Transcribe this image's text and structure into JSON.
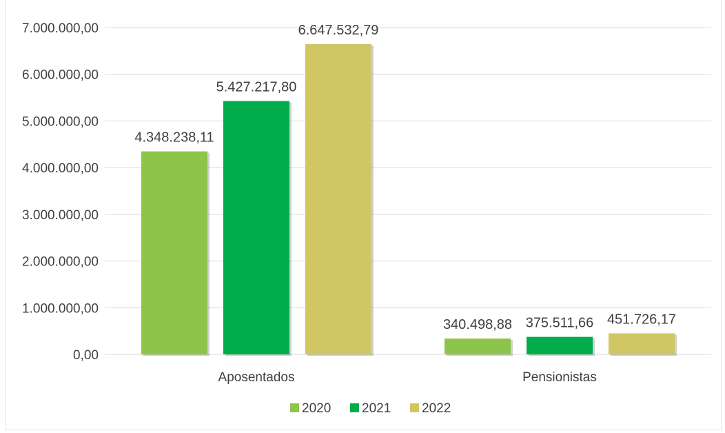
{
  "chart_data": {
    "type": "bar",
    "categories": [
      "Aposentados",
      "Pensionistas"
    ],
    "series": [
      {
        "name": "2020",
        "values": [
          4348238.11,
          340498.88
        ],
        "labels": [
          "4.348.238,11",
          "340.498,88"
        ],
        "color": "#8dc54a"
      },
      {
        "name": "2021",
        "values": [
          5427217.8,
          375511.66
        ],
        "labels": [
          "5.427.217,80",
          "375.511,66"
        ],
        "color": "#00ad4a"
      },
      {
        "name": "2022",
        "values": [
          6647532.79,
          451726.17
        ],
        "labels": [
          "6.647.532,79",
          "451.726,17"
        ],
        "color": "#d1c664"
      }
    ],
    "ylim": [
      0,
      7000000
    ],
    "yticks": [
      {
        "value": 0,
        "label": "0,00"
      },
      {
        "value": 1000000,
        "label": "1.000.000,00"
      },
      {
        "value": 2000000,
        "label": "2.000.000,00"
      },
      {
        "value": 3000000,
        "label": "3.000.000,00"
      },
      {
        "value": 4000000,
        "label": "4.000.000,00"
      },
      {
        "value": 5000000,
        "label": "5.000.000,00"
      },
      {
        "value": 6000000,
        "label": "6.000.000,00"
      },
      {
        "value": 7000000,
        "label": "7.000.000,00"
      }
    ],
    "grid": true,
    "legend": "bottom",
    "title": "",
    "xlabel": "",
    "ylabel": ""
  }
}
